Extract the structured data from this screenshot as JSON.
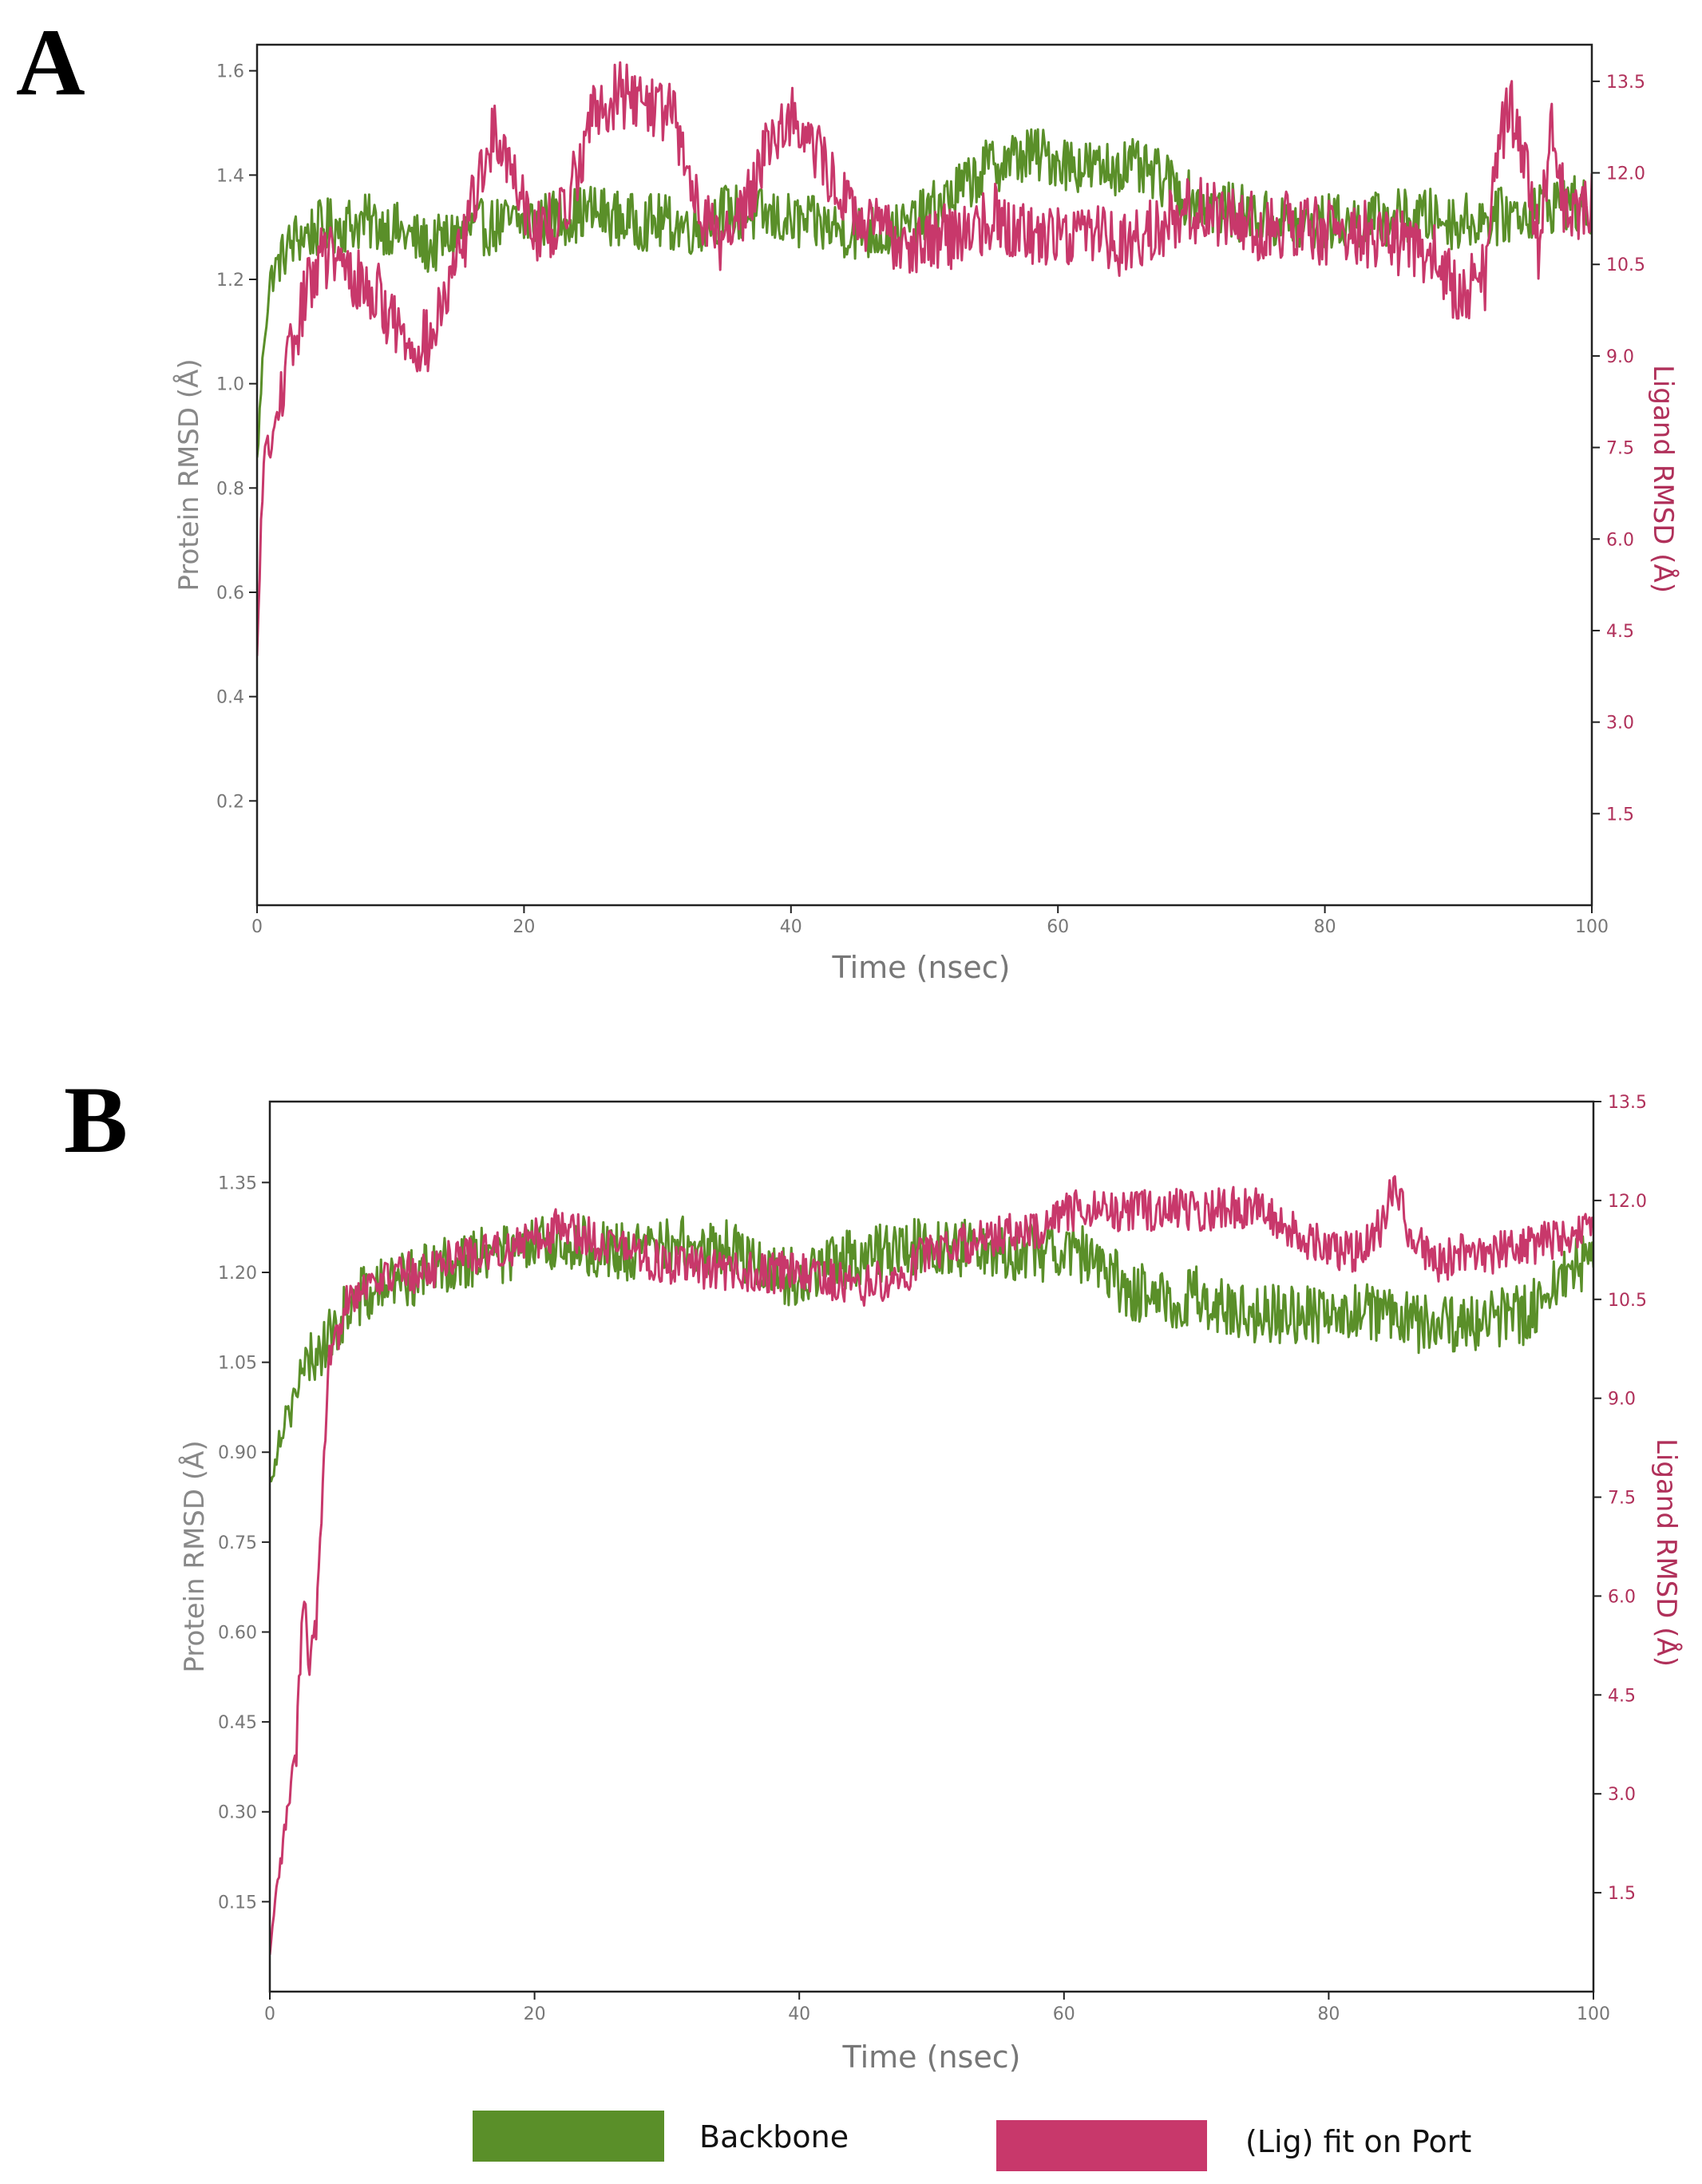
{
  "colors": {
    "backbone": "#5a8f29",
    "ligand": "#c8386b",
    "axis": "#222222",
    "left_tick": "#777777",
    "right_tick": "#b0305a"
  },
  "legend": {
    "items": [
      {
        "label": "Backbone",
        "color": "#5a8f29"
      },
      {
        "label": "(Lig) fit on Port",
        "color": "#c8386b"
      }
    ]
  },
  "chart_data": [
    {
      "panel": "A",
      "type": "line",
      "xlabel": "Time (nsec)",
      "ylabel": "Protein RMSD (Å)",
      "y2label": "Ligand RMSD (Å)",
      "xlim": [
        0,
        100
      ],
      "ylim": [
        0.0,
        1.65
      ],
      "y2lim": [
        0.0,
        14.1
      ],
      "xticks": [
        0,
        20,
        40,
        60,
        80,
        100
      ],
      "yticks": [
        "0.2",
        "0.4",
        "0.6",
        "0.8",
        "1.0",
        "1.2",
        "1.4",
        "1.6"
      ],
      "y2ticks": [
        "1.5",
        "3.0",
        "4.5",
        "6.0",
        "7.5",
        "9.0",
        "10.5",
        "12.0",
        "13.5"
      ],
      "series": [
        {
          "name": "Backbone",
          "axis": "left",
          "x": [
            0,
            0.5,
            1,
            2,
            3,
            5,
            8,
            10,
            13,
            15,
            17,
            20,
            23,
            25,
            28,
            30,
            33,
            35,
            38,
            40,
            43,
            45,
            48,
            50,
            53,
            55,
            58,
            60,
            63,
            65,
            68,
            70,
            73,
            75,
            78,
            80,
            83,
            85,
            88,
            90,
            93,
            95,
            98,
            100
          ],
          "y": [
            0.85,
            1.08,
            1.2,
            1.25,
            1.28,
            1.3,
            1.31,
            1.3,
            1.26,
            1.29,
            1.3,
            1.31,
            1.32,
            1.33,
            1.31,
            1.31,
            1.3,
            1.33,
            1.32,
            1.31,
            1.3,
            1.29,
            1.29,
            1.32,
            1.38,
            1.42,
            1.44,
            1.43,
            1.41,
            1.42,
            1.39,
            1.35,
            1.33,
            1.32,
            1.3,
            1.31,
            1.31,
            1.32,
            1.32,
            1.31,
            1.32,
            1.33,
            1.35,
            1.33
          ]
        },
        {
          "name": "(Lig) fit on Port",
          "axis": "right",
          "x": [
            0,
            0.5,
            1,
            1.5,
            2,
            3,
            4,
            5,
            7,
            9,
            11,
            13,
            15,
            17,
            18,
            20,
            21,
            23,
            25,
            27,
            29,
            31,
            33,
            35,
            37,
            38,
            40,
            42,
            45,
            48,
            50,
            53,
            55,
            58,
            60,
            63,
            65,
            68,
            70,
            73,
            75,
            78,
            80,
            83,
            85,
            88,
            90,
            92,
            93,
            94,
            95,
            96,
            97,
            98,
            100
          ],
          "y": [
            4.0,
            7.5,
            7.4,
            8.0,
            8.6,
            9.4,
            10.3,
            10.7,
            10.3,
            10.0,
            9.3,
            9.2,
            10.5,
            12.2,
            12.7,
            11.6,
            11.0,
            11.3,
            12.9,
            13.3,
            13.2,
            13.0,
            11.5,
            10.8,
            11.7,
            12.4,
            13.0,
            12.3,
            11.2,
            10.9,
            10.9,
            11.0,
            11.3,
            11.0,
            11.0,
            11.1,
            10.8,
            11.2,
            11.4,
            11.3,
            11.1,
            11.2,
            11.0,
            11.0,
            10.9,
            10.7,
            10.0,
            10.3,
            12.6,
            13.0,
            12.3,
            10.8,
            12.6,
            11.4,
            11.5
          ]
        }
      ]
    },
    {
      "panel": "B",
      "type": "line",
      "xlabel": "Time (nsec)",
      "ylabel": "Protein RMSD (Å)",
      "y2label": "Ligand RMSD (Å)",
      "xlim": [
        0,
        100
      ],
      "ylim": [
        0.0,
        1.485
      ],
      "y2lim": [
        0.0,
        13.5
      ],
      "xticks": [
        0,
        20,
        40,
        60,
        80,
        100
      ],
      "yticks": [
        "0.15",
        "0.30",
        "0.45",
        "0.60",
        "0.75",
        "0.90",
        "1.05",
        "1.20",
        "1.35"
      ],
      "y2ticks": [
        "1.5",
        "3.0",
        "4.5",
        "6.0",
        "7.5",
        "9.0",
        "10.5",
        "12.0",
        "13.5"
      ],
      "series": [
        {
          "name": "Backbone",
          "axis": "left",
          "x": [
            0,
            0.5,
            1,
            2,
            3,
            4,
            5,
            6,
            8,
            10,
            12,
            14,
            16,
            18,
            20,
            22,
            25,
            28,
            30,
            32,
            35,
            38,
            40,
            42,
            45,
            48,
            50,
            52,
            55,
            58,
            60,
            62,
            65,
            68,
            70,
            72,
            75,
            78,
            80,
            82,
            85,
            88,
            90,
            92,
            95,
            98,
            100
          ],
          "y": [
            0.85,
            0.9,
            0.95,
            1.0,
            1.05,
            1.08,
            1.1,
            1.15,
            1.17,
            1.19,
            1.2,
            1.22,
            1.23,
            1.23,
            1.24,
            1.25,
            1.24,
            1.23,
            1.25,
            1.24,
            1.24,
            1.2,
            1.19,
            1.21,
            1.23,
            1.24,
            1.25,
            1.24,
            1.24,
            1.23,
            1.25,
            1.22,
            1.17,
            1.15,
            1.16,
            1.14,
            1.13,
            1.13,
            1.13,
            1.14,
            1.12,
            1.11,
            1.11,
            1.12,
            1.13,
            1.2,
            1.23
          ]
        },
        {
          "name": "(Lig) fit on Port",
          "axis": "right",
          "x": [
            0,
            0.5,
            1,
            1.5,
            2,
            2.5,
            3,
            3.5,
            4,
            4.5,
            5,
            5.5,
            6,
            8,
            10,
            12,
            14,
            16,
            18,
            20,
            22,
            25,
            28,
            30,
            32,
            35,
            38,
            40,
            42,
            45,
            48,
            50,
            52,
            55,
            58,
            60,
            62,
            65,
            68,
            70,
            72,
            75,
            78,
            80,
            82,
            84,
            85,
            86,
            88,
            90,
            92,
            95,
            98,
            100
          ],
          "y": [
            0.5,
            1.5,
            2.2,
            3.0,
            3.6,
            6.0,
            5.0,
            5.5,
            7.5,
            9.5,
            9.8,
            10.4,
            10.6,
            10.8,
            10.9,
            10.9,
            11.2,
            11.2,
            11.3,
            11.4,
            11.6,
            11.4,
            11.2,
            11.0,
            11.0,
            10.9,
            10.9,
            10.9,
            10.8,
            10.7,
            10.9,
            11.3,
            11.3,
            11.5,
            11.5,
            11.8,
            11.9,
            11.8,
            11.9,
            11.8,
            11.9,
            11.9,
            11.4,
            11.3,
            11.2,
            11.6,
            12.4,
            11.6,
            11.0,
            11.2,
            11.2,
            11.3,
            11.5,
            11.6
          ]
        }
      ]
    }
  ]
}
